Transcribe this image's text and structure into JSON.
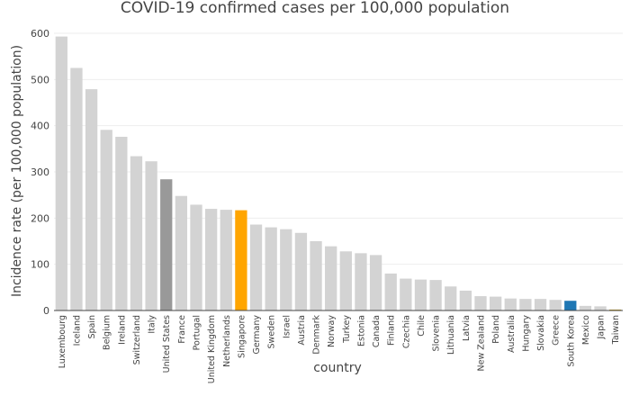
{
  "chart_data": {
    "type": "bar",
    "title": "COVID-19 confirmed cases per 100,000 population",
    "xlabel": "country",
    "ylabel": "Incidence rate (per 100,000 population)",
    "ylim": [
      0,
      600
    ],
    "yticks": [
      0,
      100,
      200,
      300,
      400,
      500,
      600
    ],
    "grid": true,
    "colors": {
      "default": "#d3d3d3",
      "United States": "#999999",
      "Singapore": "#ffa500",
      "South Korea": "#1f77b4",
      "Taiwan": "#c9a227"
    },
    "categories": [
      "Luxembourg",
      "Iceland",
      "Spain",
      "Belgium",
      "Ireland",
      "Switzerland",
      "Italy",
      "United States",
      "France",
      "Portugal",
      "United Kingdom",
      "Netherlands",
      "Singapore",
      "Germany",
      "Sweden",
      "Israel",
      "Austria",
      "Denmark",
      "Norway",
      "Turkey",
      "Estonia",
      "Canada",
      "Finland",
      "Czechia",
      "Chile",
      "Slovenia",
      "Lithuania",
      "Latvia",
      "New Zealand",
      "Poland",
      "Australia",
      "Hungary",
      "Slovakia",
      "Greece",
      "South Korea",
      "Mexico",
      "Japan",
      "Taiwan"
    ],
    "values": [
      593,
      525,
      479,
      391,
      376,
      334,
      323,
      284,
      248,
      229,
      220,
      218,
      217,
      186,
      180,
      176,
      168,
      150,
      139,
      128,
      124,
      120,
      80,
      69,
      67,
      66,
      52,
      43,
      31,
      30,
      26,
      25,
      25,
      23,
      21,
      10,
      9,
      2
    ]
  }
}
